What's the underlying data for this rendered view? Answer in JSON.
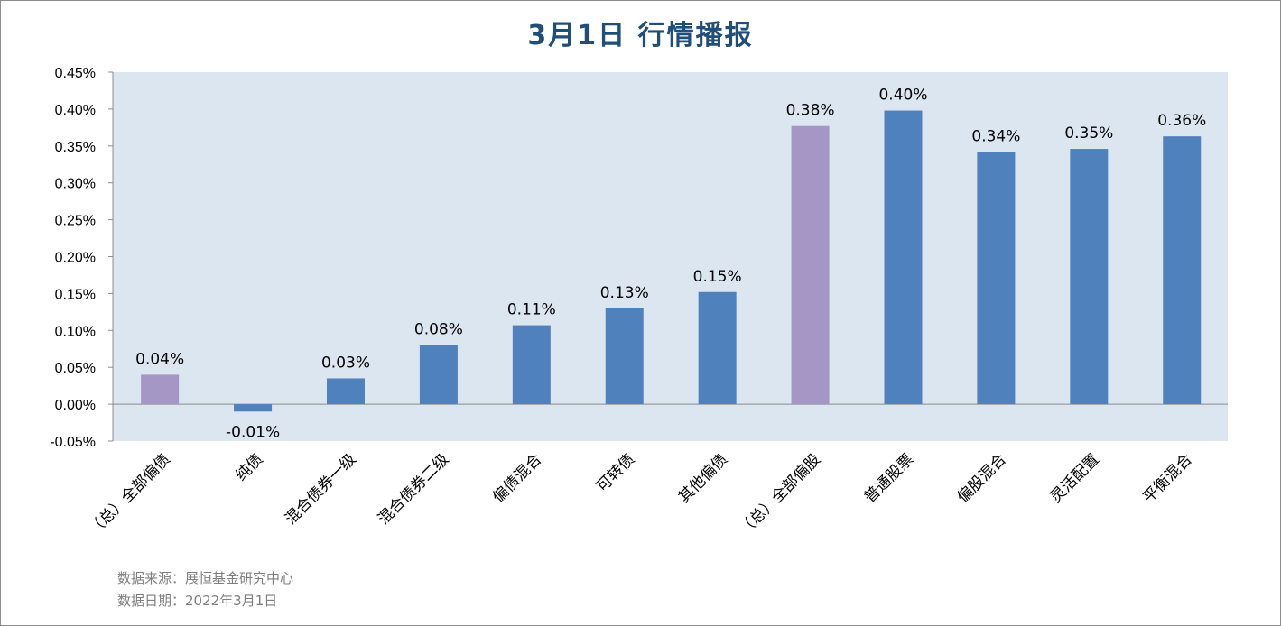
{
  "title": "3月1日  行情播报",
  "footer": {
    "source": "数据来源：展恒基金研究中心",
    "date": "数据日期：2022年3月1日"
  },
  "colors": {
    "plot_bg": "#dce6f1",
    "bar_blue": "#4f81bd",
    "bar_purple": "#a597c5",
    "title": "#1f4e79"
  },
  "chart_data": {
    "type": "bar",
    "title": "3月1日  行情播报",
    "xlabel": "",
    "ylabel": "",
    "ylim": [
      -0.05,
      0.45
    ],
    "yticks": [
      -0.05,
      0.0,
      0.05,
      0.1,
      0.15,
      0.2,
      0.25,
      0.3,
      0.35,
      0.4,
      0.45
    ],
    "ytick_labels": [
      "-0.05%",
      "0.00%",
      "0.05%",
      "0.10%",
      "0.15%",
      "0.20%",
      "0.25%",
      "0.30%",
      "0.35%",
      "0.40%",
      "0.45%"
    ],
    "grid": false,
    "categories": [
      "（总）全部偏债",
      "纯债",
      "混合债券一级",
      "混合债券二级",
      "偏债混合",
      "可转债",
      "其他偏债",
      "（总）全部偏股",
      "普通股票",
      "偏股混合",
      "灵活配置",
      "平衡混合"
    ],
    "values": [
      0.04,
      -0.01,
      0.035,
      0.08,
      0.107,
      0.13,
      0.152,
      0.377,
      0.398,
      0.342,
      0.346,
      0.363
    ],
    "labels": [
      "0.04%",
      "-0.01%",
      "0.03%",
      "0.08%",
      "0.11%",
      "0.13%",
      "0.15%",
      "0.38%",
      "0.40%",
      "0.34%",
      "0.35%",
      "0.36%"
    ],
    "bar_colors": [
      "#a597c5",
      "#4f81bd",
      "#4f81bd",
      "#4f81bd",
      "#4f81bd",
      "#4f81bd",
      "#4f81bd",
      "#a597c5",
      "#4f81bd",
      "#4f81bd",
      "#4f81bd",
      "#4f81bd"
    ]
  }
}
